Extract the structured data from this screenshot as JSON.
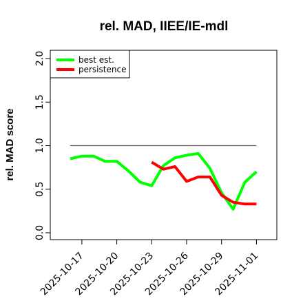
{
  "chart_data": {
    "type": "line",
    "title": "rel. MAD, IIEE/IE-mdl",
    "xlabel": "",
    "ylabel": "rel. MAD score",
    "ylim": [
      0,
      2
    ],
    "yticks": [
      "0.0",
      "0.5",
      "1.0",
      "1.5",
      "2.0"
    ],
    "xticks": [
      "2025-10-17",
      "2025-10-20",
      "2025-10-23",
      "2025-10-26",
      "2025-10-29",
      "2025-11-01"
    ],
    "x": [
      "2025-10-16",
      "2025-10-17",
      "2025-10-18",
      "2025-10-19",
      "2025-10-20",
      "2025-10-21",
      "2025-10-22",
      "2025-10-23",
      "2025-10-24",
      "2025-10-25",
      "2025-10-26",
      "2025-10-27",
      "2025-10-28",
      "2025-10-29",
      "2025-10-30",
      "2025-10-31",
      "2025-11-01"
    ],
    "series": [
      {
        "name": "best est.",
        "color": "#00ff00",
        "values": [
          0.85,
          0.88,
          0.88,
          0.82,
          0.82,
          0.71,
          0.58,
          0.54,
          0.77,
          0.86,
          0.89,
          0.91,
          0.74,
          0.46,
          0.27,
          0.58,
          0.7
        ]
      },
      {
        "name": "persistence",
        "color": "#ff0000",
        "values": [
          null,
          null,
          null,
          null,
          null,
          null,
          null,
          0.81,
          0.73,
          0.76,
          0.59,
          0.64,
          0.64,
          0.43,
          0.35,
          0.33,
          0.33
        ]
      }
    ],
    "reference_line": {
      "value": 1.0,
      "color": "#555555"
    },
    "legend": {
      "position": "top-left",
      "entries": [
        "best est.",
        "persistence"
      ]
    },
    "grid": false
  }
}
